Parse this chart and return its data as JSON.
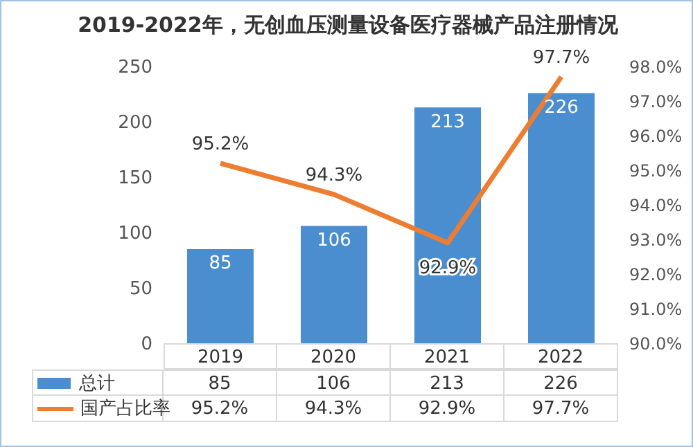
{
  "chart_data": {
    "type": "bar",
    "title": "2019-2022年，无创血压测量设备医疗器械产品注册情况",
    "categories": [
      "2019",
      "2020",
      "2021",
      "2022"
    ],
    "series": [
      {
        "name": "总计",
        "color": "#4a8ed0",
        "values": [
          85,
          106,
          213,
          226
        ],
        "value_labels": [
          "85",
          "106",
          "213",
          "226"
        ]
      },
      {
        "name": "国产占比率",
        "type": "line",
        "axis": "y2",
        "color": "#ed7d31",
        "values": [
          95.2,
          94.3,
          92.9,
          97.7
        ],
        "value_labels": [
          "95.2%",
          "94.3%",
          "92.9%",
          "97.7%"
        ]
      }
    ],
    "ylim": [
      0,
      250
    ],
    "yticks": [
      0,
      50,
      100,
      150,
      200,
      250
    ],
    "y2lim": [
      90,
      98
    ],
    "y2ticks": [
      {
        "value": 90,
        "label": "90.0%"
      },
      {
        "value": 91,
        "label": "91.0%"
      },
      {
        "value": 92,
        "label": "92.0%"
      },
      {
        "value": 93,
        "label": "93.0%"
      },
      {
        "value": 94,
        "label": "94.0%"
      },
      {
        "value": 95,
        "label": "95.0%"
      },
      {
        "value": 96,
        "label": "96.0%"
      },
      {
        "value": 97,
        "label": "97.0%"
      },
      {
        "value": 98,
        "label": "98.0%"
      }
    ],
    "grid": false,
    "legend": "bottom",
    "marker": "none"
  }
}
